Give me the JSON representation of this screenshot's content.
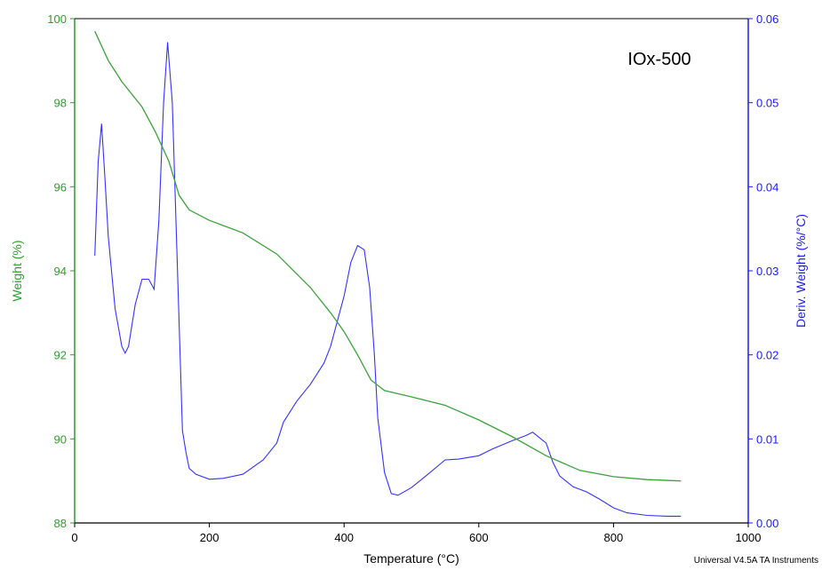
{
  "chart_data": {
    "type": "line",
    "annotation": "IOx-500",
    "footer": "Universal V4.5A TA Instruments",
    "xlabel": "Temperature (°C)",
    "ylabel_left": "Weight (%)",
    "ylabel_right": "Deriv. Weight (%/°C)",
    "xlim": [
      0,
      1000
    ],
    "ylim_left": [
      88,
      100
    ],
    "ylim_right": [
      0.0,
      0.06
    ],
    "x_ticks": [
      "0",
      "200",
      "400",
      "600",
      "800",
      "1000"
    ],
    "y_left_ticks": [
      "88",
      "90",
      "92",
      "94",
      "96",
      "98",
      "100"
    ],
    "y_right_ticks": [
      "0.00",
      "0.01",
      "0.02",
      "0.03",
      "0.04",
      "0.05",
      "0.06"
    ],
    "grid": false,
    "colors": {
      "weight": "#3aa33a",
      "deriv": "#3333ff",
      "left_axis": "#2e9e2e",
      "right_axis": "#1a1aff"
    },
    "series": [
      {
        "axis": "left",
        "x": [
          30,
          50,
          70,
          100,
          120,
          140,
          155,
          170,
          200,
          250,
          300,
          350,
          380,
          400,
          420,
          440,
          460,
          500,
          550,
          600,
          650,
          700,
          750,
          800,
          850,
          900
        ],
        "values": [
          99.7,
          99.0,
          98.5,
          97.9,
          97.3,
          96.6,
          95.8,
          95.45,
          95.2,
          94.9,
          94.4,
          93.6,
          93.0,
          92.55,
          92.0,
          91.4,
          91.15,
          91.0,
          90.8,
          90.45,
          90.05,
          89.6,
          89.25,
          89.1,
          89.03,
          89.0
        ]
      },
      {
        "axis": "right",
        "x": [
          30,
          35,
          40,
          45,
          50,
          60,
          70,
          75,
          80,
          90,
          100,
          110,
          118,
          125,
          132,
          138,
          145,
          155,
          160,
          165,
          170,
          180,
          200,
          220,
          250,
          280,
          300,
          310,
          330,
          350,
          370,
          380,
          390,
          400,
          410,
          420,
          430,
          438,
          445,
          450,
          460,
          470,
          480,
          500,
          520,
          550,
          570,
          600,
          620,
          650,
          670,
          680,
          700,
          710,
          720,
          740,
          760,
          780,
          800,
          820,
          850,
          880,
          900
        ],
        "values": [
          0.0318,
          0.043,
          0.0475,
          0.041,
          0.034,
          0.0255,
          0.021,
          0.0202,
          0.021,
          0.026,
          0.029,
          0.029,
          0.0278,
          0.036,
          0.05,
          0.0572,
          0.05,
          0.024,
          0.011,
          0.0085,
          0.0065,
          0.0058,
          0.0052,
          0.0053,
          0.0058,
          0.0075,
          0.0095,
          0.012,
          0.0145,
          0.0165,
          0.019,
          0.021,
          0.024,
          0.027,
          0.031,
          0.033,
          0.0325,
          0.028,
          0.02,
          0.0125,
          0.006,
          0.0035,
          0.0033,
          0.0042,
          0.0055,
          0.0075,
          0.0076,
          0.008,
          0.0088,
          0.0098,
          0.0104,
          0.0108,
          0.0095,
          0.0072,
          0.0056,
          0.0043,
          0.0037,
          0.0028,
          0.0018,
          0.0012,
          0.0009,
          0.0008,
          0.0008
        ]
      }
    ]
  }
}
